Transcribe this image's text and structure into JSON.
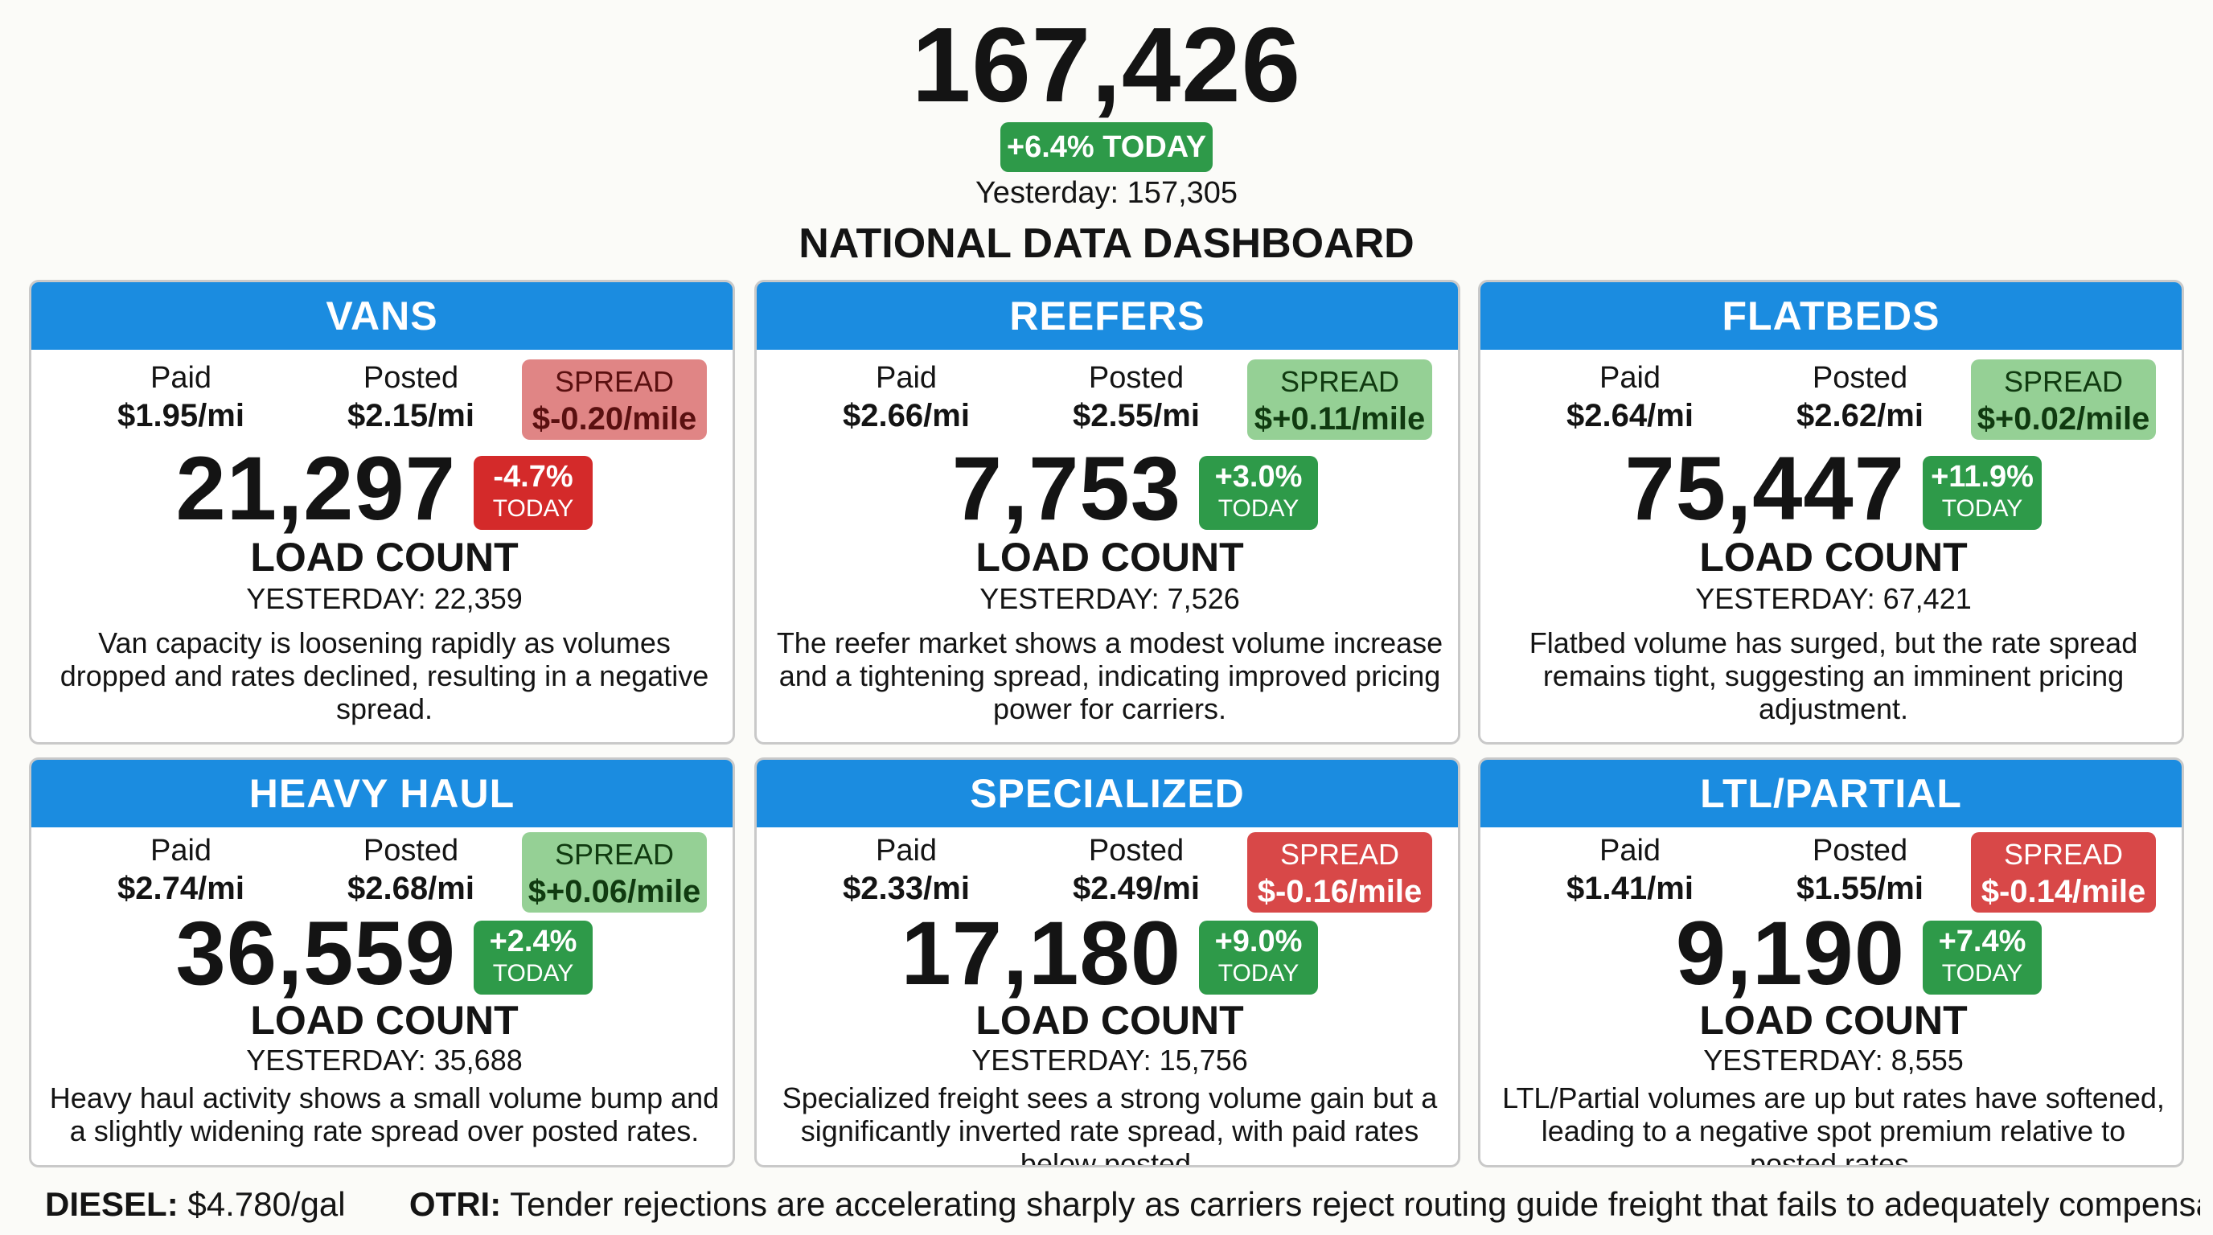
{
  "summary": {
    "total": "167,426",
    "change": "+6.4% TODAY",
    "yesterday": "Yesterday: 157,305",
    "title": "NATIONAL DATA DASHBOARD"
  },
  "colors": {
    "header_blue": "#1b8ce0",
    "up_green": "#2e9a49",
    "down_red": "#d42a2a",
    "spread_green": "#95d095",
    "spread_red": "#e08585",
    "spread_red_strong": "#d84848"
  },
  "labels": {
    "paid": "Paid",
    "posted": "Posted",
    "spread": "SPREAD",
    "load_count": "LOAD COUNT",
    "today": "TODAY"
  },
  "cards": [
    {
      "title": "VANS",
      "paid": "$1.95/mi",
      "posted": "$2.15/mi",
      "spread": "$-0.20/mile",
      "spread_tone": "negative",
      "count": "21,297",
      "delta": "-4.7%",
      "delta_tone": "down",
      "yesterday": "YESTERDAY: 22,359",
      "description": "Van capacity is loosening rapidly as volumes dropped and rates declined, resulting in a negative spread."
    },
    {
      "title": "REEFERS",
      "paid": "$2.66/mi",
      "posted": "$2.55/mi",
      "spread": "$+0.11/mile",
      "spread_tone": "positive",
      "count": "7,753",
      "delta": "+3.0%",
      "delta_tone": "up",
      "yesterday": "YESTERDAY: 7,526",
      "description": "The reefer market shows a modest volume increase and a tightening spread, indicating improved pricing power for carriers."
    },
    {
      "title": "FLATBEDS",
      "paid": "$2.64/mi",
      "posted": "$2.62/mi",
      "spread": "$+0.02/mile",
      "spread_tone": "positive",
      "count": "75,447",
      "delta": "+11.9%",
      "delta_tone": "up",
      "yesterday": "YESTERDAY: 67,421",
      "description": "Flatbed volume has surged, but the rate spread remains tight, suggesting an imminent pricing adjustment."
    },
    {
      "title": "HEAVY HAUL",
      "paid": "$2.74/mi",
      "posted": "$2.68/mi",
      "spread": "$+0.06/mile",
      "spread_tone": "positive",
      "count": "36,559",
      "delta": "+2.4%",
      "delta_tone": "up",
      "yesterday": "YESTERDAY: 35,688",
      "description": "Heavy haul activity shows a small volume bump and a slightly widening rate spread over posted rates."
    },
    {
      "title": "SPECIALIZED",
      "paid": "$2.33/mi",
      "posted": "$2.49/mi",
      "spread": "$-0.16/mile",
      "spread_tone": "negative-strong",
      "count": "17,180",
      "delta": "+9.0%",
      "delta_tone": "up",
      "yesterday": "YESTERDAY: 15,756",
      "description": "Specialized freight sees a strong volume gain but a significantly inverted rate spread, with paid rates below posted."
    },
    {
      "title": "LTL/PARTIAL",
      "paid": "$1.41/mi",
      "posted": "$1.55/mi",
      "spread": "$-0.14/mile",
      "spread_tone": "negative-strong",
      "count": "9,190",
      "delta": "+7.4%",
      "delta_tone": "up",
      "yesterday": "YESTERDAY: 8,555",
      "description": "LTL/Partial volumes are up but rates have softened, leading to a negative spot premium relative to posted rates."
    }
  ],
  "footer": {
    "diesel_label": "DIESEL:",
    "diesel_value": "$4.780/gal",
    "otri_label": "OTRI:",
    "otri_text": "Tender rejections are accelerating sharply as carriers reject routing guide freight that fails to adequately compensate for the sudden surge in"
  }
}
